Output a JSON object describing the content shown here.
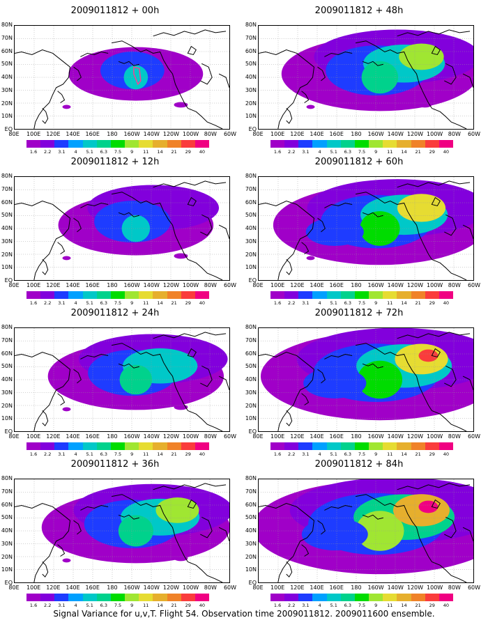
{
  "caption": "Signal Variance for u,v,T. Flight 54. Observation time 2009011812. 2009011600 ensemble.",
  "lat_labels": [
    "80N",
    "70N",
    "60N",
    "50N",
    "40N",
    "30N",
    "20N",
    "10N",
    "EQ"
  ],
  "lon_labels": [
    "80E",
    "100E",
    "120E",
    "140E",
    "160E",
    "180",
    "160W",
    "140W",
    "120W",
    "100W",
    "80W",
    "60W"
  ],
  "colorbar": {
    "colors": [
      "#a000c8",
      "#8200dc",
      "#1e3cff",
      "#00a0ff",
      "#00c8c8",
      "#00d28c",
      "#00dc00",
      "#a0e632",
      "#e6dc32",
      "#e6af2d",
      "#f08228",
      "#fa3c3c",
      "#f00082"
    ],
    "labels": [
      "1.6",
      "2.2",
      "3.1",
      "4",
      "5.1",
      "6.3",
      "7.5",
      "9",
      "11",
      "14",
      "21",
      "29",
      "40"
    ]
  },
  "panels": [
    {
      "title": "2009011812 + 00h"
    },
    {
      "title": "2009011812 + 48h"
    },
    {
      "title": "2009011812 + 12h"
    },
    {
      "title": "2009011812 + 60h"
    },
    {
      "title": "2009011812 + 24h"
    },
    {
      "title": "2009011812 + 72h"
    },
    {
      "title": "2009011812 + 36h"
    },
    {
      "title": "2009011812 + 84h"
    }
  ]
}
